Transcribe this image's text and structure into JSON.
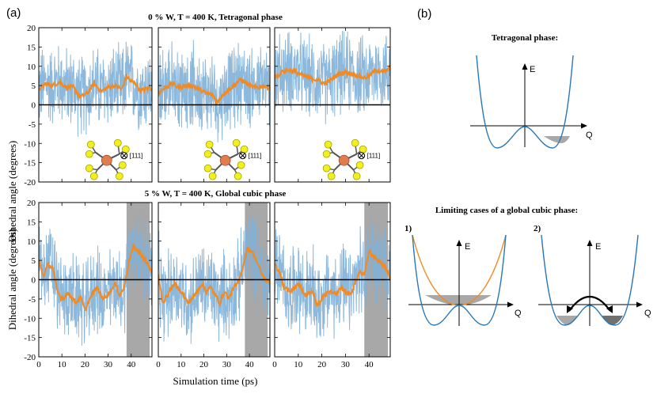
{
  "figure": {
    "label_a": "(a)",
    "label_b": "(b)"
  },
  "chart_data": {
    "type": "line",
    "ylabel": "Dihedral angle (degrees)",
    "xlabel": "Simulation time (ps)",
    "xlim": [
      0,
      49
    ],
    "ylim": [
      -20,
      20
    ],
    "xticks": [
      "0",
      "10",
      "20",
      "30",
      "40"
    ],
    "yticks": [
      "20",
      "15",
      "10",
      "5",
      "0",
      "-5",
      "-10",
      "-15",
      "-20"
    ],
    "rows": [
      {
        "title": "0 % W,  T = 400 K,  Tetragonal phase",
        "panels": [
          {
            "mean": 5,
            "amp": 8.5,
            "shade": null,
            "axis_label": "[111]",
            "avg": [
              [
                0,
                4
              ],
              [
                3,
                5.5
              ],
              [
                6,
                5
              ],
              [
                9,
                6
              ],
              [
                12,
                4.5
              ],
              [
                15,
                4.5
              ],
              [
                18,
                2
              ],
              [
                21,
                3
              ],
              [
                24,
                5.5
              ],
              [
                27,
                3.5
              ],
              [
                30,
                4.5
              ],
              [
                33,
                5
              ],
              [
                36,
                4
              ],
              [
                38,
                7.5
              ],
              [
                40,
                6
              ],
              [
                42,
                5.5
              ],
              [
                44,
                3.5
              ],
              [
                46,
                4
              ],
              [
                48,
                4.5
              ],
              [
                49,
                4
              ]
            ]
          },
          {
            "mean": 4.5,
            "amp": 8.5,
            "shade": null,
            "axis_label": "[111]",
            "avg": [
              [
                0,
                3
              ],
              [
                3,
                4.5
              ],
              [
                6,
                5.5
              ],
              [
                9,
                4.5
              ],
              [
                12,
                5
              ],
              [
                15,
                5
              ],
              [
                18,
                4
              ],
              [
                21,
                3
              ],
              [
                24,
                2.5
              ],
              [
                26,
                0.5
              ],
              [
                28,
                2.5
              ],
              [
                31,
                4
              ],
              [
                33,
                5
              ],
              [
                36,
                6.5
              ],
              [
                38,
                6
              ],
              [
                40,
                5
              ],
              [
                42,
                4.5
              ],
              [
                44,
                4.5
              ],
              [
                46,
                5
              ],
              [
                48,
                4.5
              ],
              [
                49,
                4.5
              ]
            ]
          },
          {
            "mean": 8.5,
            "amp": 8.5,
            "shade": null,
            "axis_label": "[111]",
            "avg": [
              [
                0,
                7
              ],
              [
                3,
                8.5
              ],
              [
                6,
                9
              ],
              [
                9,
                8.5
              ],
              [
                12,
                7.5
              ],
              [
                15,
                7
              ],
              [
                18,
                6.5
              ],
              [
                21,
                5.5
              ],
              [
                24,
                6.5
              ],
              [
                27,
                8
              ],
              [
                30,
                8.5
              ],
              [
                33,
                8
              ],
              [
                36,
                7.5
              ],
              [
                38,
                7
              ],
              [
                40,
                7.5
              ],
              [
                43,
                9
              ],
              [
                46,
                8.5
              ],
              [
                48,
                9
              ],
              [
                49,
                9.5
              ]
            ]
          }
        ]
      },
      {
        "title": "5 % W,  T = 400 K,  Global cubic phase",
        "panels": [
          {
            "mean": 0,
            "amp": 9,
            "shade": [
              38,
              48
            ],
            "axis_label": "",
            "avg": [
              [
                0,
                5
              ],
              [
                2,
                1
              ],
              [
                4,
                4
              ],
              [
                6,
                3
              ],
              [
                8,
                -3
              ],
              [
                10,
                -5
              ],
              [
                13,
                -3.5
              ],
              [
                16,
                -6
              ],
              [
                18,
                -4.5
              ],
              [
                20,
                -8
              ],
              [
                22,
                -5
              ],
              [
                25,
                -2
              ],
              [
                28,
                -5
              ],
              [
                31,
                -3
              ],
              [
                33,
                -1
              ],
              [
                35,
                -4
              ],
              [
                37,
                -2
              ],
              [
                39,
                5
              ],
              [
                41,
                8.5
              ],
              [
                43,
                7.5
              ],
              [
                45,
                6
              ],
              [
                47,
                4
              ],
              [
                49,
                2
              ]
            ]
          },
          {
            "mean": 0,
            "amp": 9,
            "shade": [
              38,
              48
            ],
            "axis_label": "",
            "avg": [
              [
                0,
                1
              ],
              [
                2,
                -6
              ],
              [
                4,
                -4
              ],
              [
                7,
                -1
              ],
              [
                10,
                -3
              ],
              [
                13,
                -6
              ],
              [
                16,
                -4
              ],
              [
                19,
                -1
              ],
              [
                21,
                -3
              ],
              [
                23,
                -2
              ],
              [
                25,
                -4
              ],
              [
                27,
                -6
              ],
              [
                29,
                -3
              ],
              [
                31,
                -5
              ],
              [
                33,
                -2
              ],
              [
                35,
                -1
              ],
              [
                37,
                3
              ],
              [
                39,
                8
              ],
              [
                41,
                7.5
              ],
              [
                43,
                5
              ],
              [
                45,
                2
              ],
              [
                47,
                0
              ],
              [
                49,
                -1
              ]
            ]
          },
          {
            "mean": 0,
            "amp": 9,
            "shade": [
              38,
              48
            ],
            "axis_label": "",
            "avg": [
              [
                0,
                4
              ],
              [
                2,
                2
              ],
              [
                4,
                -2
              ],
              [
                7,
                -3
              ],
              [
                10,
                -1
              ],
              [
                13,
                -4
              ],
              [
                16,
                -3
              ],
              [
                18,
                -7
              ],
              [
                20,
                -5
              ],
              [
                23,
                -3
              ],
              [
                26,
                -4
              ],
              [
                28,
                -2
              ],
              [
                30,
                -3
              ],
              [
                32,
                -4
              ],
              [
                34,
                -1
              ],
              [
                36,
                2
              ],
              [
                38,
                1
              ],
              [
                40,
                7.5
              ],
              [
                42,
                6
              ],
              [
                44,
                5
              ],
              [
                46,
                4
              ],
              [
                48,
                2
              ],
              [
                49,
                0
              ]
            ]
          }
        ]
      }
    ]
  },
  "right_panel": {
    "tetragonal_title": "Tetragonal phase:",
    "cubic_title": "Limiting cases of a global cubic phase:",
    "case1": "1)",
    "case2": "2)",
    "E": "E",
    "Q": "Q"
  },
  "colors": {
    "raw": "#7fb0d8",
    "avg": "#f08a24",
    "curve": "#2877b8",
    "harmonic": "#f08a24",
    "shade": "#a8a8a8",
    "shade_dark": "#707070"
  }
}
